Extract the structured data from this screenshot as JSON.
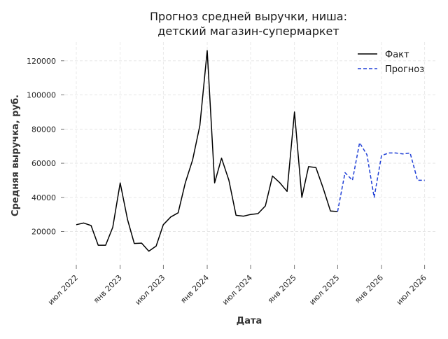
{
  "chart_data": {
    "type": "line",
    "title": [
      "Прогноз средней выручки, ниша:",
      "детский магазин-супермаркет"
    ],
    "xlabel": "Дата",
    "ylabel": "Средняя выручка, руб.",
    "ylim": [
      3000,
      131000
    ],
    "xlim": [
      "2022-05-15",
      "2026-08-15"
    ],
    "grid": true,
    "legend_position": "top-right",
    "y_ticks": [
      {
        "value": 20000,
        "label": "20000"
      },
      {
        "value": 40000,
        "label": "40000"
      },
      {
        "value": 60000,
        "label": "60000"
      },
      {
        "value": 80000,
        "label": "80000"
      },
      {
        "value": 100000,
        "label": "100000"
      },
      {
        "value": 120000,
        "label": "120000"
      }
    ],
    "x_ticks": [
      {
        "date": "2022-07-01",
        "label": "июл 2022"
      },
      {
        "date": "2023-01-01",
        "label": "янв 2023"
      },
      {
        "date": "2023-07-01",
        "label": "июл 2023"
      },
      {
        "date": "2024-01-01",
        "label": "янв 2024"
      },
      {
        "date": "2024-07-01",
        "label": "июл 2024"
      },
      {
        "date": "2025-01-01",
        "label": "янв 2025"
      },
      {
        "date": "2025-07-01",
        "label": "июл 2025"
      },
      {
        "date": "2026-01-01",
        "label": "янв 2026"
      },
      {
        "date": "2026-07-01",
        "label": "июл 2026"
      }
    ],
    "series": [
      {
        "name": "Факт",
        "color": "#000000",
        "dash": "solid",
        "points": [
          [
            "2022-07-01",
            24000
          ],
          [
            "2022-08-01",
            25000
          ],
          [
            "2022-09-01",
            23500
          ],
          [
            "2022-10-01",
            12000
          ],
          [
            "2022-11-01",
            12000
          ],
          [
            "2022-12-01",
            22500
          ],
          [
            "2023-01-01",
            48500
          ],
          [
            "2023-02-01",
            27000
          ],
          [
            "2023-03-01",
            13000
          ],
          [
            "2023-04-01",
            13200
          ],
          [
            "2023-05-01",
            8500
          ],
          [
            "2023-06-01",
            11500
          ],
          [
            "2023-07-01",
            24000
          ],
          [
            "2023-08-01",
            28500
          ],
          [
            "2023-09-01",
            31000
          ],
          [
            "2023-10-01",
            48500
          ],
          [
            "2023-11-01",
            62000
          ],
          [
            "2023-12-01",
            82000
          ],
          [
            "2024-01-01",
            126000
          ],
          [
            "2024-02-01",
            48500
          ],
          [
            "2024-03-01",
            63000
          ],
          [
            "2024-04-01",
            50000
          ],
          [
            "2024-05-01",
            29500
          ],
          [
            "2024-06-01",
            29000
          ],
          [
            "2024-07-01",
            30000
          ],
          [
            "2024-08-01",
            30500
          ],
          [
            "2024-09-01",
            35000
          ],
          [
            "2024-10-01",
            52500
          ],
          [
            "2024-11-01",
            48500
          ],
          [
            "2024-12-01",
            43500
          ],
          [
            "2025-01-01",
            90000
          ],
          [
            "2025-02-01",
            40000
          ],
          [
            "2025-03-01",
            58000
          ],
          [
            "2025-04-01",
            57500
          ],
          [
            "2025-05-01",
            45500
          ],
          [
            "2025-06-01",
            32000
          ],
          [
            "2025-07-01",
            31700
          ]
        ]
      },
      {
        "name": "Прогноз",
        "color": "#1f3fd6",
        "dash": "dashed",
        "points": [
          [
            "2025-07-01",
            31700
          ],
          [
            "2025-08-01",
            54500
          ],
          [
            "2025-09-01",
            50000
          ],
          [
            "2025-10-01",
            72000
          ],
          [
            "2025-11-01",
            65000
          ],
          [
            "2025-12-01",
            40000
          ],
          [
            "2026-01-01",
            64500
          ],
          [
            "2026-02-01",
            66000
          ],
          [
            "2026-03-01",
            66000
          ],
          [
            "2026-04-01",
            65500
          ],
          [
            "2026-05-01",
            66000
          ],
          [
            "2026-06-01",
            50000
          ],
          [
            "2026-07-01",
            50000
          ]
        ]
      }
    ]
  }
}
